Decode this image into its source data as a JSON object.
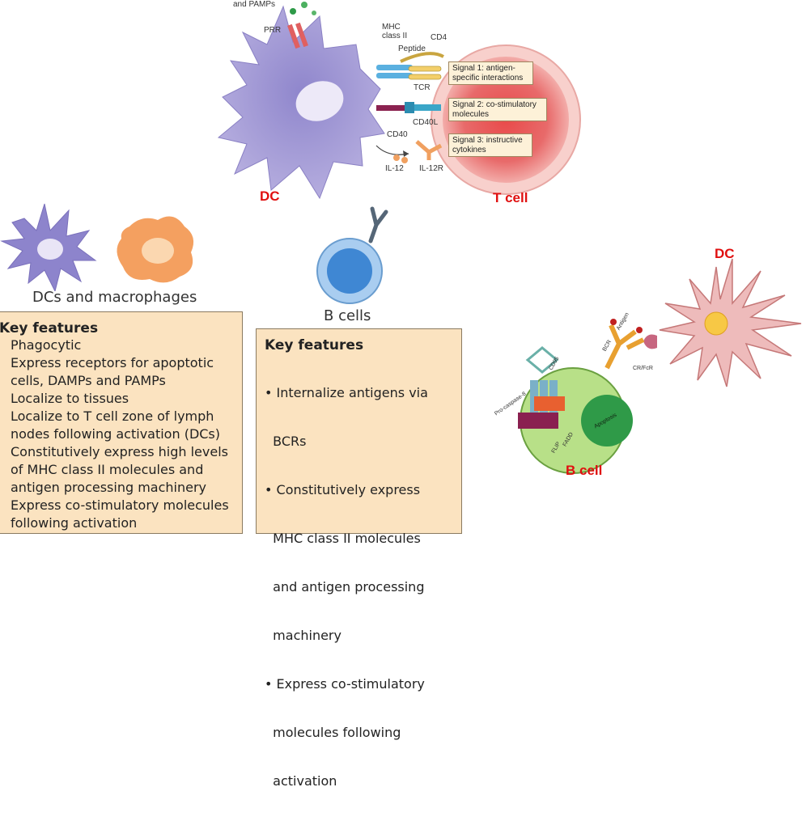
{
  "top_diagram": {
    "prr_label": "PRR",
    "pamps_label": "and PAMPs",
    "mhc_label": "MHC\nclass II",
    "cd4_label": "CD4",
    "peptide_label": "Peptide",
    "tcr_label": "TCR",
    "cd40l_label": "CD40L",
    "cd40_label": "CD40",
    "il12_label": "IL-12",
    "il12r_label": "IL-12R",
    "signal1": "Signal 1: antigen-\nspecific interactions",
    "signal2": "Signal 2: co-stimulatory\nmolecules",
    "signal3": "Signal 3: instructive\ncytokines",
    "dc_label": "DC",
    "tcell_label": "T cell"
  },
  "left_panel": {
    "caption": "DCs and macrophages",
    "heading": "Key features",
    "items": [
      "Phagocytic",
      "Express receptors for apoptotic",
      "cells, DAMPs and PAMPs",
      "Localize to tissues",
      "Localize to T cell zone of lymph",
      "nodes following activation (DCs)",
      "Constitutively express high levels",
      "of MHC class II molecules and",
      "antigen processing machinery",
      "Express co-stimulatory molecules",
      "following activation"
    ]
  },
  "middle_panel": {
    "caption": "B cells",
    "heading": "Key features",
    "items": [
      "• Internalize antigens via",
      "  BCRs",
      "• Constitutively express",
      "  MHC class II molecules",
      "  and antigen processing",
      "  machinery",
      "• Express co-stimulatory",
      "  molecules following",
      "  activation"
    ]
  },
  "bottom_right": {
    "dc_label": "DC",
    "bcell_label": "B cell",
    "antigen_label": "Antigen",
    "bcr_label": "BCR",
    "cd95_label": "CD95",
    "procaspase_label": "Pro-caspase-8",
    "flip_label": "FLIP",
    "fadd_label": "FADD",
    "apoptosis_label": "Apoptosis",
    "receptor_label": "CR/FcR"
  },
  "colors": {
    "dc_purple": "#9b8fd0",
    "tcell_red": "#e35a5a",
    "macrophage_orange": "#f4a060",
    "bcell_blue": "#3f87d3",
    "box_fill": "#fbe3c0",
    "label_red": "#e01010",
    "bcell_green": "#9fd36a"
  }
}
